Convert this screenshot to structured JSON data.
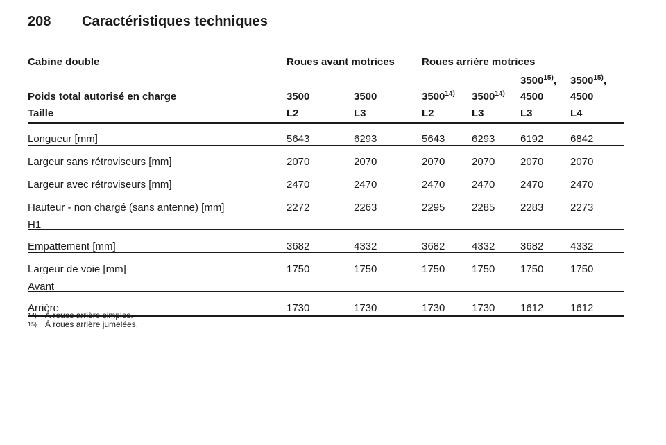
{
  "header": {
    "page_number": "208",
    "title": "Caractéristiques techniques"
  },
  "table": {
    "group_headers": [
      {
        "text": "Cabine double",
        "col": 0
      },
      {
        "text": "Roues avant motrices",
        "col": 1
      },
      {
        "text": "Roues arrière motrices",
        "col": 3
      }
    ],
    "weight_row": {
      "label": "Poids total autorisé en charge",
      "cells": [
        {
          "text": "3500"
        },
        {
          "text": "3500"
        },
        {
          "text": "3500",
          "sup": "14)"
        },
        {
          "text": "3500",
          "sup": "14)"
        },
        {
          "text": "3500",
          "sup": "15)",
          "suffix": ",",
          "line2": "4500"
        },
        {
          "text": "3500",
          "sup": "15)",
          "suffix": ",",
          "line2": "4500"
        }
      ]
    },
    "size_row": {
      "label": "Taille",
      "values": [
        "L2",
        "L3",
        "L2",
        "L3",
        "L3",
        "L4"
      ]
    },
    "rows": [
      {
        "label": "Longueur [mm]",
        "values": [
          "5643",
          "6293",
          "5643",
          "6293",
          "6192",
          "6842"
        ]
      },
      {
        "label": "Largeur sans rétroviseurs [mm]",
        "values": [
          "2070",
          "2070",
          "2070",
          "2070",
          "2070",
          "2070"
        ]
      },
      {
        "label": "Largeur avec rétroviseurs [mm]",
        "values": [
          "2470",
          "2470",
          "2470",
          "2470",
          "2470",
          "2470"
        ]
      },
      {
        "label": "Hauteur - non chargé (sans antenne) [mm]",
        "sublabel": "H1",
        "values": [
          "2272",
          "2263",
          "2295",
          "2285",
          "2283",
          "2273"
        ]
      },
      {
        "label": "Empattement [mm]",
        "values": [
          "3682",
          "4332",
          "3682",
          "4332",
          "3682",
          "4332"
        ]
      },
      {
        "label": "Largeur de voie [mm]",
        "sublabel": "Avant",
        "values": [
          "1750",
          "1750",
          "1750",
          "1750",
          "1750",
          "1750"
        ]
      },
      {
        "label": "Arrière",
        "values": [
          "1730",
          "1730",
          "1730",
          "1730",
          "1612",
          "1612"
        ]
      }
    ]
  },
  "footnotes": [
    {
      "mark": "14)",
      "text": "À roues arrière simples."
    },
    {
      "mark": "15)",
      "text": "À roues arrière jumelées."
    }
  ]
}
